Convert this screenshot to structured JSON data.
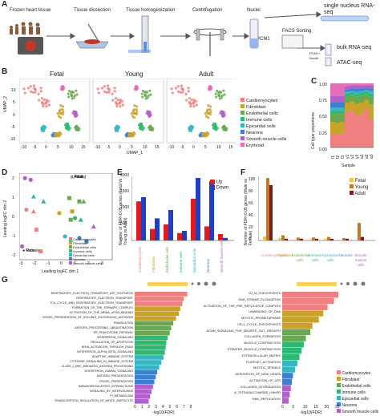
{
  "panel_letters": [
    "A",
    "B",
    "C",
    "D",
    "E",
    "F",
    "G"
  ],
  "panelA": {
    "steps": [
      "Frozen heart tissue",
      "Tissue dissection",
      "Tissue homogenization",
      "Centrifugation",
      "Nuclei"
    ],
    "outputs": [
      "single nucleus RNA-seq",
      "bulk RNA-seq",
      "ATAC-seq"
    ],
    "facs": "FACS Sorting",
    "pcm1": "PCM1",
    "pcm1_nuclei": "PCM1+ Nuclei"
  },
  "panelB": {
    "titles": [
      "Fetal",
      "Young",
      "Adult"
    ],
    "xlabel": "UMAP_1",
    "ylabel": "UMAP_2",
    "xticks": [
      "-10",
      "-5",
      "0",
      "5",
      "10",
      "15",
      "-10",
      "-5",
      "0",
      "5",
      "10",
      "15",
      "-10",
      "-5",
      "0",
      "5",
      "10",
      "15"
    ],
    "yticks": [
      "10",
      "5",
      "0",
      "-5",
      "-10"
    ],
    "legend": [
      {
        "label": "Cardiomyocytes",
        "color": "#f08080"
      },
      {
        "label": "Fibroblast",
        "color": "#c9a22a"
      },
      {
        "label": "Endothelial cells",
        "color": "#6aa84f"
      },
      {
        "label": "Immune cells",
        "color": "#2eb872"
      },
      {
        "label": "Epicardial cells",
        "color": "#36b5c5"
      },
      {
        "label": "Neurons",
        "color": "#3d7fd1"
      },
      {
        "label": "Smooth muscle cells",
        "color": "#b061c9"
      },
      {
        "label": "Erythroid",
        "color": "#e36fb6"
      }
    ]
  },
  "panelC": {
    "ylabel": "Cell type proportions",
    "xlabel": "Sample",
    "yticks": [
      "0.00",
      "0.25",
      "0.50",
      "0.75",
      "1.00"
    ],
    "samples": [
      "f1",
      "f2",
      "f3",
      "y1",
      "y2",
      "y3",
      "a1",
      "a2",
      "a3"
    ]
  },
  "panelD": {
    "xlabel": "Leading logFC dim 1",
    "ylabel": "Leading logFC dim 2",
    "xticks": [
      "-3",
      "-2",
      "-1",
      "0",
      "1",
      "2",
      "3"
    ],
    "yticks": [
      "2",
      "1",
      "0",
      "-1",
      "-2"
    ],
    "age_legend": [
      "Fetal",
      "Young",
      "Adult"
    ],
    "sex_legend": [
      "Female",
      "Male"
    ],
    "cell_legend": [
      "Cardiomyocytes",
      "Fibroblast",
      "Endothelial cells",
      "Immune cells",
      "Epicardial cells",
      "Neurons",
      "Smooth muscle cells"
    ]
  },
  "panelE": {
    "ylabel": "Number of FDR<0.05 genes (Fetal vs Young vs Adult)",
    "yticks": [
      "0",
      "500",
      "1000",
      "1500",
      "2000"
    ],
    "legend": [
      "Up",
      "Down"
    ],
    "categories": [
      "Cardiomyocytes",
      "Fibroblast",
      "Endothelial cells",
      "Immune cells",
      "Epicardial cells",
      "Neurons",
      "Smooth muscle cells"
    ]
  },
  "panelF": {
    "ylabel": "Number of FDR<0.05 genes (Male vs Female)",
    "yticks": [
      "0",
      "20",
      "40",
      "60",
      "80",
      "100"
    ],
    "legend": [
      "Fetal",
      "Young",
      "Adult"
    ],
    "categories": [
      "Cardiomyocytes",
      "Fibroblast",
      "Endothelial cells",
      "Immune cells",
      "Epicardial cells",
      "Neurons",
      "Smooth muscle cells"
    ]
  },
  "panelG": {
    "left_xlabel": "-log10(FDR)",
    "right_xlabel": "-log10(FDR)",
    "left_xticks": [
      "0",
      "1",
      "2",
      "3",
      "4",
      "5",
      "6",
      "7",
      "8"
    ],
    "right_xticks": [
      "0",
      "5",
      "10",
      "15",
      "20",
      "25"
    ],
    "legend": [
      "Cardiomyocytes",
      "Fibroblast",
      "Endothelial cells",
      "Immune cells",
      "Epicardial cells",
      "Neurons",
      "Smooth muscle cells"
    ],
    "left_terms": [
      "RESPIRATORY_ELECTRON_TRANSPORT_ATP_SYNTHESIS",
      "RESPIRATORY_ELECTRON_TRANSPORT",
      "TCA_CYCLE_AND_RESPIRATORY_ELECTRON_TRANSPORT",
      "FORMATION_OF_THE_TERNARY_COMPLEX",
      "ACTIVATION_OF_THE_MRNA_UPON_BINDING",
      "CROSS_PRESENTATION_OF_SOLUBLE_EXOGENOUS_ANTIGENS",
      "TRANSLATION",
      "ANTIGEN_PROCESSING_UBIQUITINATION",
      "ER_PHAGOSOME_PATHWAY",
      "INTERFERON_SIGNALING",
      "REGULATION_OF_APOPTOSIS",
      "NFKB_ACTIVATION_THROUGH_FADD",
      "INTERFERON_ALPHA_BETA_SIGNALING",
      "ADAPTIVE_IMMUNE_SYSTEM",
      "CYTOKINE_SIGNALING_IN_IMMUNE_SYSTEM",
      "CLASS_I_MHC_MEDIATED_ANTIGEN_PROCESSING",
      "INTERFERON_GAMMA_SIGNALING",
      "ANTIGEN_PRESENTATION",
      "CROSS_PRESENTATION",
      "IMMUNOREGULATORY_INTERACTIONS",
      "SIGNALING_BY_INTERLEUKINS",
      "PI_METABOLISM",
      "TRANSCRIPTION_REGULATION_OF_WHITE_ADIPOCYTE"
    ],
    "right_terms": [
      "G2_M_CHECKPOINTS",
      "DNA_STRAND_ELONGATION",
      "ACTIVATION_OF_THE_PRE_REPLICATIVE_COMPLEX",
      "UNWINDING_OF_DNA",
      "MITOTIC_PROMETAPHASE",
      "CELL_CYCLE_CHECKPOINTS",
      "NCAM_SIGNALING_FOR_NEURITE_OUT_GROWTH",
      "COLLAGEN_FORMATION",
      "MUSCLE_CONTRACTION",
      "STRIATED_MUSCLE_CONTRACTION",
      "EXTRACELLULAR_MATRIX",
      "PLATELET_ACTIVATION",
      "MITOTIC_SPINDLE",
      "DEPOSITION_OF_NEW_CENPA",
      "ACTIVATION_OF_ATR",
      "COLLAGEN_DEGRADATION",
      "A_TETRASACCHARIDE_LINKER",
      "DNA_REPLICATION"
    ]
  },
  "colors": {
    "cardio": "#f08080",
    "fibro": "#c9a22a",
    "endo": "#6aa84f",
    "immune": "#2eb872",
    "epi": "#36b5c5",
    "neuron": "#3d7fd1",
    "smc": "#b061c9",
    "ery": "#e36fb6",
    "up": "#e31a1c",
    "down": "#1f3fc0",
    "fetal": "#f4c542",
    "young": "#c0792b",
    "adult": "#7b1d1d"
  }
}
